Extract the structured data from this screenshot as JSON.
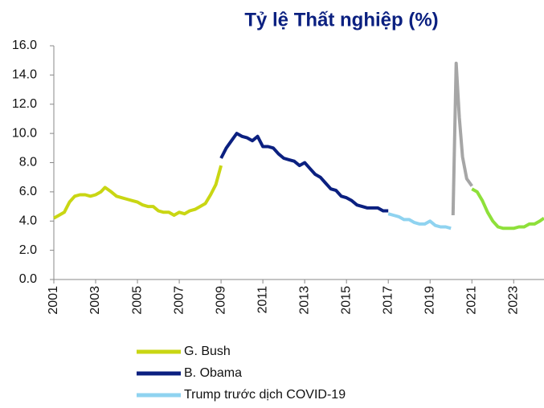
{
  "chart_data": {
    "type": "line",
    "title": "Tỷ lệ Thất nghiệp (%)",
    "xlim": [
      2001,
      2024.45
    ],
    "xticks": [
      2001,
      2003,
      2005,
      2007,
      2009,
      2011,
      2013,
      2015,
      2017,
      2019,
      2021,
      2023
    ],
    "ylim": [
      0,
      16
    ],
    "yticks": [
      {
        "value": 0,
        "label": "0.0"
      },
      {
        "value": 2,
        "label": "2.0"
      },
      {
        "value": 4,
        "label": "4.0"
      },
      {
        "value": 6,
        "label": "6.0"
      },
      {
        "value": 8,
        "label": "8.0"
      },
      {
        "value": 10,
        "label": "10.0"
      },
      {
        "value": 12,
        "label": "12.0"
      },
      {
        "value": 14,
        "label": "14.0"
      },
      {
        "value": 16,
        "label": "16.0"
      }
    ],
    "grid": false,
    "legend": "bottom",
    "series": [
      {
        "name": "G. Bush",
        "color": "#c9d613",
        "x": [
          2001.0,
          2001.25,
          2001.5,
          2001.75,
          2002.0,
          2002.25,
          2002.5,
          2002.75,
          2003.0,
          2003.25,
          2003.45,
          2003.75,
          2004.0,
          2004.25,
          2004.5,
          2004.75,
          2005.0,
          2005.25,
          2005.5,
          2005.75,
          2006.0,
          2006.25,
          2006.5,
          2006.75,
          2007.0,
          2007.25,
          2007.5,
          2007.75,
          2008.0,
          2008.25,
          2008.5,
          2008.75,
          2009.0
        ],
        "values": [
          4.2,
          4.4,
          4.6,
          5.3,
          5.7,
          5.8,
          5.8,
          5.7,
          5.8,
          6.0,
          6.3,
          6.0,
          5.7,
          5.6,
          5.5,
          5.4,
          5.3,
          5.1,
          5.0,
          5.0,
          4.7,
          4.6,
          4.6,
          4.4,
          4.6,
          4.5,
          4.7,
          4.8,
          5.0,
          5.2,
          5.8,
          6.5,
          7.8
        ]
      },
      {
        "name": "B. Obama",
        "color": "#0b2080",
        "x": [
          2009.0,
          2009.25,
          2009.5,
          2009.75,
          2010.0,
          2010.25,
          2010.5,
          2010.75,
          2011.0,
          2011.25,
          2011.5,
          2011.75,
          2012.0,
          2012.25,
          2012.5,
          2012.75,
          2013.0,
          2013.25,
          2013.5,
          2013.75,
          2014.0,
          2014.25,
          2014.5,
          2014.75,
          2015.0,
          2015.25,
          2015.5,
          2015.75,
          2016.0,
          2016.25,
          2016.5,
          2016.75,
          2017.0
        ],
        "values": [
          8.3,
          9.0,
          9.5,
          10.0,
          9.8,
          9.7,
          9.5,
          9.8,
          9.1,
          9.1,
          9.0,
          8.6,
          8.3,
          8.2,
          8.1,
          7.8,
          8.0,
          7.6,
          7.2,
          7.0,
          6.6,
          6.2,
          6.1,
          5.7,
          5.6,
          5.4,
          5.1,
          5.0,
          4.9,
          4.9,
          4.9,
          4.7,
          4.7
        ]
      },
      {
        "name": "Trump trước dịch COVID-19",
        "color": "#8fd3f0",
        "x": [
          2017.0,
          2017.25,
          2017.5,
          2017.75,
          2018.0,
          2018.25,
          2018.5,
          2018.75,
          2019.0,
          2019.25,
          2019.5,
          2019.75,
          2020.0
        ],
        "values": [
          4.5,
          4.4,
          4.3,
          4.1,
          4.1,
          3.9,
          3.8,
          3.8,
          4.0,
          3.7,
          3.6,
          3.6,
          3.5
        ]
      },
      {
        "color": "#a6a6a6",
        "x": [
          2020.1,
          2020.25,
          2020.4,
          2020.55,
          2020.75,
          2021.0
        ],
        "values": [
          4.4,
          14.8,
          11.1,
          8.4,
          6.9,
          6.4
        ]
      },
      {
        "color": "#8ee03a",
        "x": [
          2021.0,
          2021.25,
          2021.5,
          2021.75,
          2022.0,
          2022.25,
          2022.5,
          2022.75,
          2023.0,
          2023.25,
          2023.5,
          2023.75,
          2024.0,
          2024.25,
          2024.45
        ],
        "values": [
          6.2,
          6.0,
          5.4,
          4.6,
          4.0,
          3.6,
          3.5,
          3.5,
          3.5,
          3.6,
          3.6,
          3.8,
          3.8,
          4.0,
          4.2
        ]
      }
    ]
  }
}
